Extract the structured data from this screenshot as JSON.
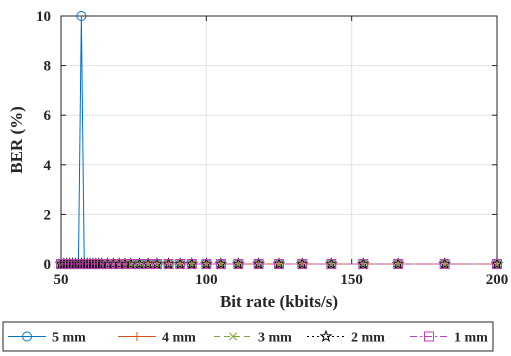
{
  "chart_data": {
    "type": "line",
    "xlabel": "Bit rate (kbits/s)",
    "ylabel": "BER (%)",
    "xlim": [
      50,
      200
    ],
    "ylim": [
      0,
      10
    ],
    "xticks": [
      50,
      100,
      150,
      200
    ],
    "yticks": [
      0,
      2,
      4,
      6,
      8,
      10
    ],
    "grid": true,
    "legend_position": "bottom",
    "x": [
      50,
      51,
      52,
      53,
      54,
      55,
      56,
      57,
      58,
      59,
      60,
      61,
      62,
      63,
      64,
      66,
      68,
      70,
      72,
      74,
      77,
      80,
      83,
      87,
      91,
      95,
      100,
      105,
      111,
      118,
      125,
      133,
      143,
      154,
      166,
      182,
      200
    ],
    "series": [
      {
        "name": "5 mm",
        "color": "#0072BD",
        "marker": "circle",
        "dash": "solid",
        "values": [
          0,
          0,
          0,
          0,
          0,
          0,
          0,
          10,
          0,
          0,
          0,
          0,
          0,
          0,
          0,
          0,
          0,
          0,
          0,
          0,
          0,
          0,
          0,
          0,
          0,
          0,
          0,
          0,
          0,
          0,
          0,
          0,
          0,
          0,
          0,
          0,
          0
        ]
      },
      {
        "name": "4 mm",
        "color": "#D95319",
        "marker": "plus",
        "dash": "solid",
        "values": [
          0,
          0,
          0,
          0,
          0,
          0,
          0,
          0,
          0,
          0,
          0,
          0,
          0,
          0,
          0,
          0,
          0,
          0,
          0,
          0,
          0,
          0,
          0,
          0,
          0,
          0,
          0,
          0,
          0,
          0,
          0,
          0,
          0,
          0,
          0,
          0,
          0
        ]
      },
      {
        "name": "3 mm",
        "color": "#77AC30",
        "marker": "x",
        "dash": "dashed",
        "values": [
          0,
          0,
          0,
          0,
          0,
          0,
          0,
          0,
          0,
          0,
          0,
          0,
          0,
          0,
          0,
          0,
          0,
          0,
          0,
          0,
          0,
          0,
          0,
          0,
          0,
          0,
          0,
          0,
          0,
          0,
          0,
          0,
          0,
          0,
          0,
          0,
          0
        ]
      },
      {
        "name": "2 mm",
        "color": "#000000",
        "marker": "star",
        "dash": "dotted",
        "values": [
          0,
          0,
          0,
          0,
          0,
          0,
          0,
          0,
          0,
          0,
          0,
          0,
          0,
          0,
          0,
          0,
          0,
          0,
          0,
          0,
          0,
          0,
          0,
          0,
          0,
          0,
          0,
          0,
          0,
          0,
          0,
          0,
          0,
          0,
          0,
          0,
          0
        ]
      },
      {
        "name": "1 mm",
        "color": "#C040B8",
        "marker": "square",
        "dash": "dashdot",
        "values": [
          0,
          0,
          0,
          0,
          0,
          0,
          0,
          0,
          0,
          0,
          0,
          0,
          0,
          0,
          0,
          0,
          0,
          0,
          0,
          0,
          0,
          0,
          0,
          0,
          0,
          0,
          0,
          0,
          0,
          0,
          0,
          0,
          0,
          0,
          0,
          0,
          0
        ]
      }
    ]
  }
}
